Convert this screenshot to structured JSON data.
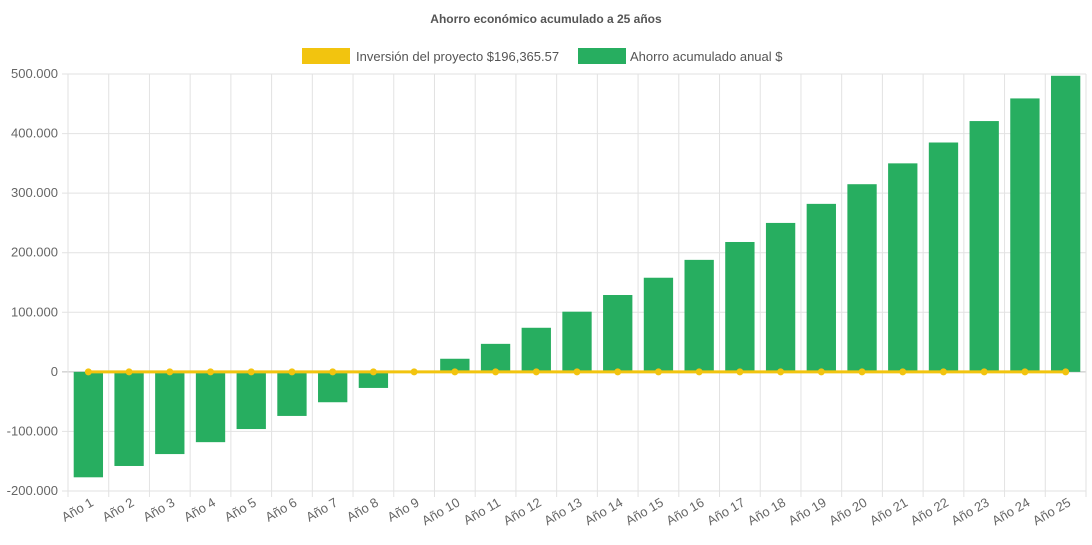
{
  "chart_data": {
    "type": "bar",
    "title": "Ahorro económico acumulado a 25 años",
    "legend_position": "top-center",
    "grid": true,
    "ylim": [
      -200000,
      500000
    ],
    "yticks": [
      -200000,
      -100000,
      0,
      100000,
      200000,
      300000,
      400000,
      500000
    ],
    "ytick_labels": [
      "-200.000",
      "-100.000",
      "0",
      "100.000",
      "200.000",
      "300.000",
      "400.000",
      "500.000"
    ],
    "categories": [
      "Año 1",
      "Año 2",
      "Año 3",
      "Año 4",
      "Año 5",
      "Año 6",
      "Año 7",
      "Año 8",
      "Año 9",
      "Año 10",
      "Año 11",
      "Año 12",
      "Año 13",
      "Año 14",
      "Año 15",
      "Año 16",
      "Año 17",
      "Año 18",
      "Año 19",
      "Año 20",
      "Año 21",
      "Año 22",
      "Año 23",
      "Año 24",
      "Año 25"
    ],
    "series": [
      {
        "name": "Inversión del proyecto $196,365.57",
        "type": "line",
        "color": "#f2c40f",
        "values": [
          0,
          0,
          0,
          0,
          0,
          0,
          0,
          0,
          0,
          0,
          0,
          0,
          0,
          0,
          0,
          0,
          0,
          0,
          0,
          0,
          0,
          0,
          0,
          0,
          0
        ]
      },
      {
        "name": "Ahorro acumulado anual $",
        "type": "bar",
        "color": "#27ae60",
        "values": [
          -177000,
          -158000,
          -138000,
          -118000,
          -96000,
          -74000,
          -51000,
          -27000,
          -1000,
          22000,
          47000,
          74000,
          101000,
          129000,
          158000,
          188000,
          218000,
          250000,
          282000,
          315000,
          350000,
          385000,
          421000,
          459000,
          497000
        ]
      }
    ]
  }
}
